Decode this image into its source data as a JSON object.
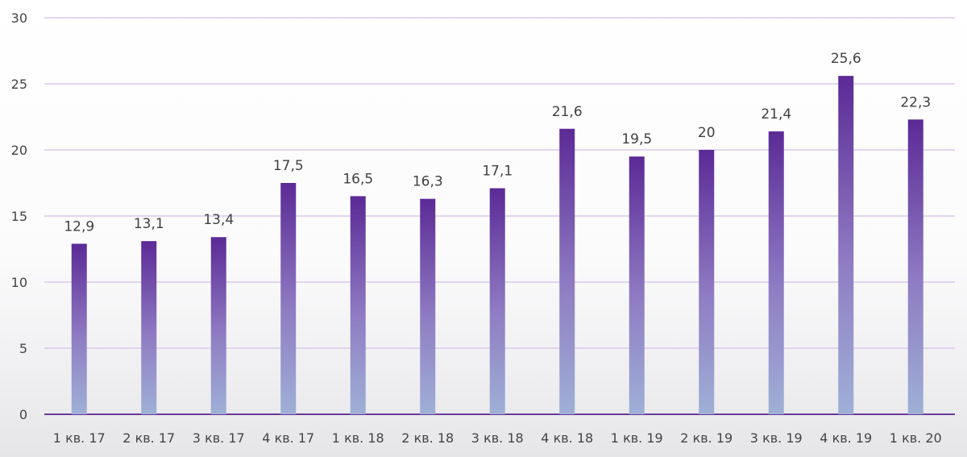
{
  "chart_data": {
    "type": "bar",
    "categories": [
      "1 кв. 17",
      "2 кв. 17",
      "3 кв. 17",
      "4 кв. 17",
      "1 кв. 18",
      "2 кв. 18",
      "3 кв. 18",
      "4 кв. 18",
      "1 кв. 19",
      "2 кв. 19",
      "3 кв. 19",
      "4 кв. 19",
      "1 кв. 20"
    ],
    "values": [
      12.9,
      13.1,
      13.4,
      17.5,
      16.5,
      16.3,
      17.1,
      21.6,
      19.5,
      20,
      21.4,
      25.6,
      22.3
    ],
    "data_labels": [
      "12,9",
      "13,1",
      "13,4",
      "17,5",
      "16,5",
      "16,3",
      "17,1",
      "21,6",
      "19,5",
      "20",
      "21,4",
      "25,6",
      "22,3"
    ],
    "y_ticks": [
      0,
      5,
      10,
      15,
      20,
      25,
      30
    ],
    "ylim": [
      0,
      30
    ],
    "grid": true,
    "colors": {
      "bar_top": "#5b2a96",
      "bar_mid": "#8f7cc3",
      "bar_bottom": "#9fb0d6",
      "gridline": "#d9c9ec",
      "baseline": "#6a3a9a"
    }
  }
}
